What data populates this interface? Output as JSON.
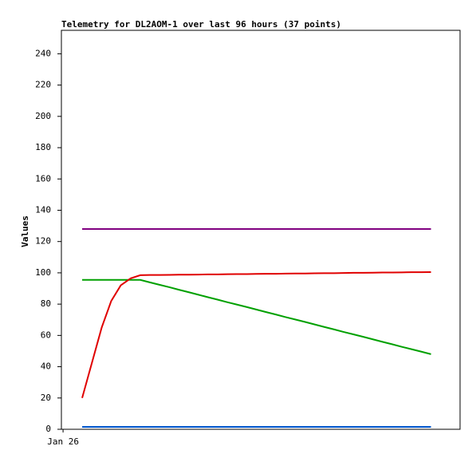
{
  "chart_data": {
    "type": "line",
    "title": "Telemetry for DL2AOM-1 over last 96 hours (37 points)",
    "ylabel": "Values",
    "x": [
      5,
      7.3,
      9.7,
      12,
      14.3,
      16.7,
      19,
      21.3,
      23.7,
      26,
      28.3,
      30.7,
      33,
      35.3,
      37.7,
      40,
      42.3,
      44.7,
      47,
      49.3,
      51.7,
      54,
      56.3,
      58.7,
      61,
      63.3,
      65.7,
      68,
      70.3,
      72.7,
      75,
      77.3,
      79.7,
      82,
      84.3,
      86.7,
      89
    ],
    "xlim": [
      0,
      96
    ],
    "xticks": [
      {
        "value": 0.4,
        "label": "Jan 26"
      }
    ],
    "ylim": [
      0,
      255
    ],
    "yticks": [
      0,
      20,
      40,
      60,
      80,
      100,
      120,
      140,
      160,
      180,
      200,
      220,
      240
    ],
    "grid": false,
    "series": [
      {
        "color": "#800080",
        "values": [
          128,
          128,
          128,
          128,
          128,
          128,
          128,
          128,
          128,
          128,
          128,
          128,
          128,
          128,
          128,
          128,
          128,
          128,
          128,
          128,
          128,
          128,
          128,
          128,
          128,
          128,
          128,
          128,
          128,
          128,
          128,
          128,
          128,
          128,
          128,
          128,
          128
        ]
      },
      {
        "color": "#00a000",
        "values": [
          95.5,
          95.5,
          95.5,
          95.5,
          95.5,
          95.5,
          95.5,
          93.9,
          92.3,
          90.8,
          89.2,
          87.6,
          86,
          84.4,
          82.8,
          81.2,
          79.7,
          78.1,
          76.5,
          74.9,
          73.3,
          71.7,
          70.2,
          68.6,
          67,
          65.4,
          63.8,
          62.2,
          60.7,
          59.1,
          57.5,
          55.9,
          54.3,
          52.7,
          51.2,
          49.6,
          48
        ]
      },
      {
        "color": "#e00000",
        "values": [
          20,
          42,
          65,
          82,
          92,
          96.5,
          98.5,
          98.6,
          98.6,
          98.7,
          98.8,
          98.8,
          98.9,
          99,
          99,
          99.1,
          99.2,
          99.2,
          99.3,
          99.4,
          99.4,
          99.5,
          99.6,
          99.6,
          99.7,
          99.8,
          99.8,
          99.9,
          100,
          100,
          100.1,
          100.2,
          100.2,
          100.3,
          100.4,
          100.4,
          100.5
        ]
      },
      {
        "color": "#0055cc",
        "values": [
          1.5,
          1.5,
          1.5,
          1.5,
          1.5,
          1.5,
          1.5,
          1.5,
          1.5,
          1.5,
          1.5,
          1.5,
          1.5,
          1.5,
          1.5,
          1.5,
          1.5,
          1.5,
          1.5,
          1.5,
          1.5,
          1.5,
          1.5,
          1.5,
          1.5,
          1.5,
          1.5,
          1.5,
          1.5,
          1.5,
          1.5,
          1.5,
          1.5,
          1.5,
          1.5,
          1.5,
          1.5
        ]
      }
    ]
  }
}
